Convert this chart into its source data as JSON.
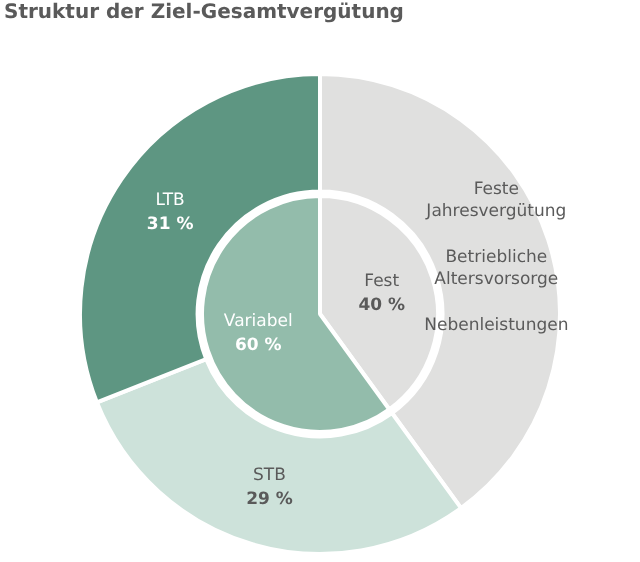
{
  "chart_data": [
    {
      "type": "donut",
      "title": "Struktur der Ziel-Gesamtvergütung",
      "categories": [
        null,
        "STB",
        "LTB"
      ],
      "values": [
        40,
        29,
        31
      ],
      "colors": [
        "#e0e0df",
        "#cde2da",
        "#5e9682"
      ],
      "value_labels": [
        null,
        "29 %",
        "31 %"
      ],
      "annotations": [
        "Feste Jahresvergütung",
        "Betriebliche Altersvorsorge",
        "Nebenleistungen"
      ]
    },
    {
      "type": "pie",
      "categories": [
        "Fest",
        "Variabel"
      ],
      "values": [
        40,
        60
      ],
      "colors": [
        "#e0e0df",
        "#93bcab"
      ],
      "value_labels": [
        "40 %",
        "60 %"
      ]
    }
  ]
}
